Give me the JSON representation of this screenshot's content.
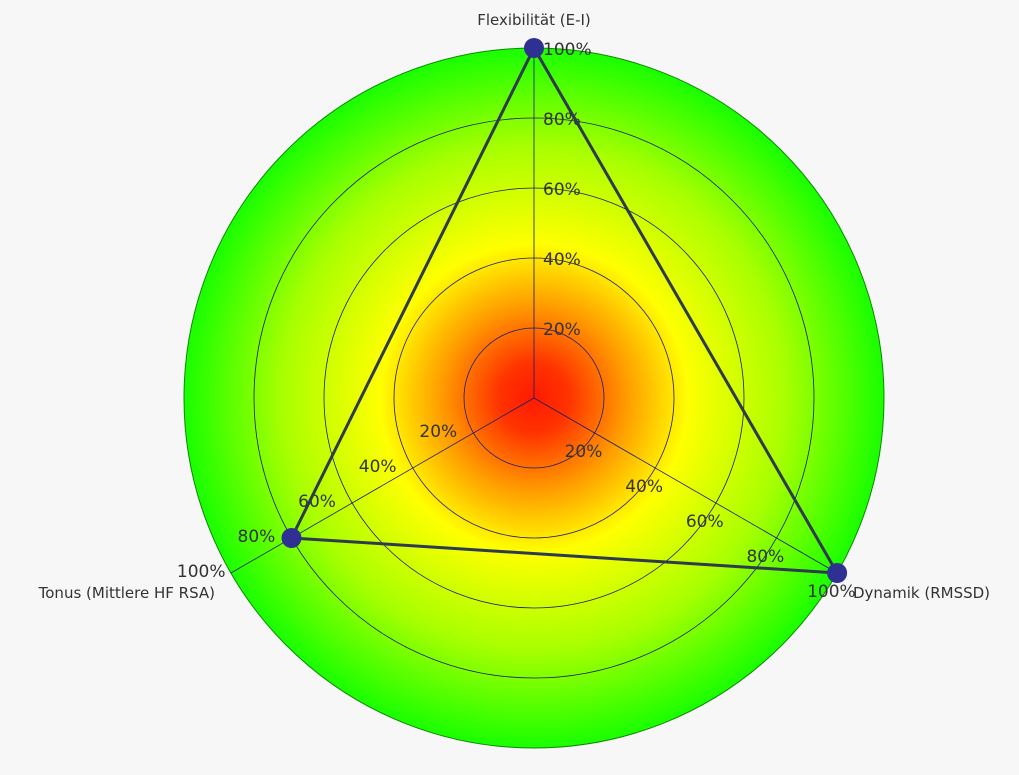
{
  "colors": {
    "background": "#f7f7f7",
    "grid": "#1a1a6e",
    "series_line": "#2d3a4f",
    "marker": "#2e3192",
    "zone_center": "#ff1a00",
    "zone_mid": "#ffff00",
    "zone_outer": "#19ff00"
  },
  "chart_data": {
    "type": "radar",
    "axes": [
      {
        "label": "Flexibilität (E-I)",
        "value": 100
      },
      {
        "label": "Dynamik (RMSSD)",
        "value": 100
      },
      {
        "label": "Tonus (Mittlere HF RSA)",
        "value": 80
      }
    ],
    "radial_range": [
      0,
      100
    ],
    "tick_labels": [
      "20%",
      "40%",
      "60%",
      "80%",
      "100%"
    ],
    "tick_values": [
      20,
      40,
      60,
      80,
      100
    ],
    "tick_labels_partial": [
      "20%",
      "40%",
      "60%",
      "80%"
    ],
    "grid": true,
    "background_gradient": [
      "red",
      "yellow",
      "green"
    ]
  }
}
